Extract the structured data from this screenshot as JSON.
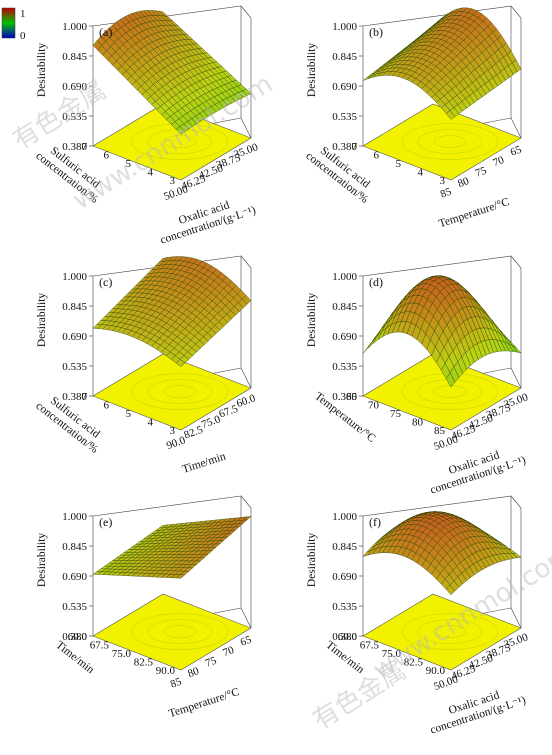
{
  "colorbar": {
    "max_label": "1",
    "min_label": "0",
    "colors": [
      "#c00000",
      "#00c000",
      "#0000c0"
    ]
  },
  "watermark": [
    "有色金属",
    "www.cnnmol.com"
  ],
  "chart_data": [
    {
      "type": "surface3d",
      "panel_label": "(a)",
      "zlabel": "Desirability",
      "zticks": [
        "0.380",
        "0.535",
        "0.690",
        "0.845",
        "1.000"
      ],
      "xlabel": [
        "Oxalic acid",
        "concentration/(g·L⁻¹)"
      ],
      "xticks": [
        "50.00",
        "46.25",
        "42.50",
        "38.75",
        "35.00"
      ],
      "ylabel": [
        "Sulfuric acid",
        "concentration/%"
      ],
      "yticks": [
        "3",
        "4",
        "5",
        "6",
        "7"
      ]
    },
    {
      "type": "surface3d",
      "panel_label": "(b)",
      "zlabel": "Desirability",
      "zticks": [
        "0.380",
        "0.535",
        "0.690",
        "0.845",
        "1.000"
      ],
      "xlabel": [
        "Temperature/°C"
      ],
      "xticks": [
        "85",
        "80",
        "75",
        "70",
        "65"
      ],
      "ylabel": [
        "Sulfuric acid",
        "concentration/%"
      ],
      "yticks": [
        "3",
        "4",
        "5",
        "6",
        "7"
      ]
    },
    {
      "type": "surface3d",
      "panel_label": "(c)",
      "zlabel": "Desirability",
      "zticks": [
        "0.380",
        "0.535",
        "0.690",
        "0.845",
        "1.000"
      ],
      "xlabel": [
        "Time/min"
      ],
      "xticks": [
        "90.0",
        "82.5",
        "75.0",
        "67.5",
        "60.0"
      ],
      "ylabel": [
        "Sulfuric acid",
        "concentration/%"
      ],
      "yticks": [
        "3",
        "4",
        "5",
        "6",
        "7"
      ]
    },
    {
      "type": "surface3d",
      "panel_label": "(d)",
      "zlabel": "Desirability",
      "zticks": [
        "0.380",
        "0.535",
        "0.690",
        "0.845",
        "1.000"
      ],
      "xlabel": [
        "Oxalic acid",
        "concentration/(g·L⁻¹)"
      ],
      "xticks": [
        "50.00",
        "46.25",
        "42.50",
        "38.75",
        "35.00"
      ],
      "ylabel": [
        "Temperature/°C"
      ],
      "yticks": [
        "85",
        "80",
        "75",
        "70",
        "65"
      ]
    },
    {
      "type": "surface3d",
      "panel_label": "(e)",
      "zlabel": "Desirability",
      "zticks": [
        "0.380",
        "0.535",
        "0.690",
        "0.845",
        "1.000"
      ],
      "xlabel": [
        "Temperature/°C"
      ],
      "xticks": [
        "85",
        "80",
        "75",
        "70",
        "65"
      ],
      "ylabel": [
        "Time/min"
      ],
      "yticks": [
        "90.0",
        "82.5",
        "75.0",
        "67.5",
        "60.0"
      ]
    },
    {
      "type": "surface3d",
      "panel_label": "(f)",
      "zlabel": "Desirability",
      "zticks": [
        "0.380",
        "0.535",
        "0.690",
        "0.845",
        "1.000"
      ],
      "xlabel": [
        "Oxalic acid",
        "concentration/(g·L⁻¹)"
      ],
      "xticks": [
        "50.00",
        "46.25",
        "42.50",
        "38.75",
        "35.00"
      ],
      "ylabel": [
        "Time/min"
      ],
      "yticks": [
        "90.0",
        "82.5",
        "75.0",
        "67.5",
        "60.0"
      ]
    }
  ]
}
